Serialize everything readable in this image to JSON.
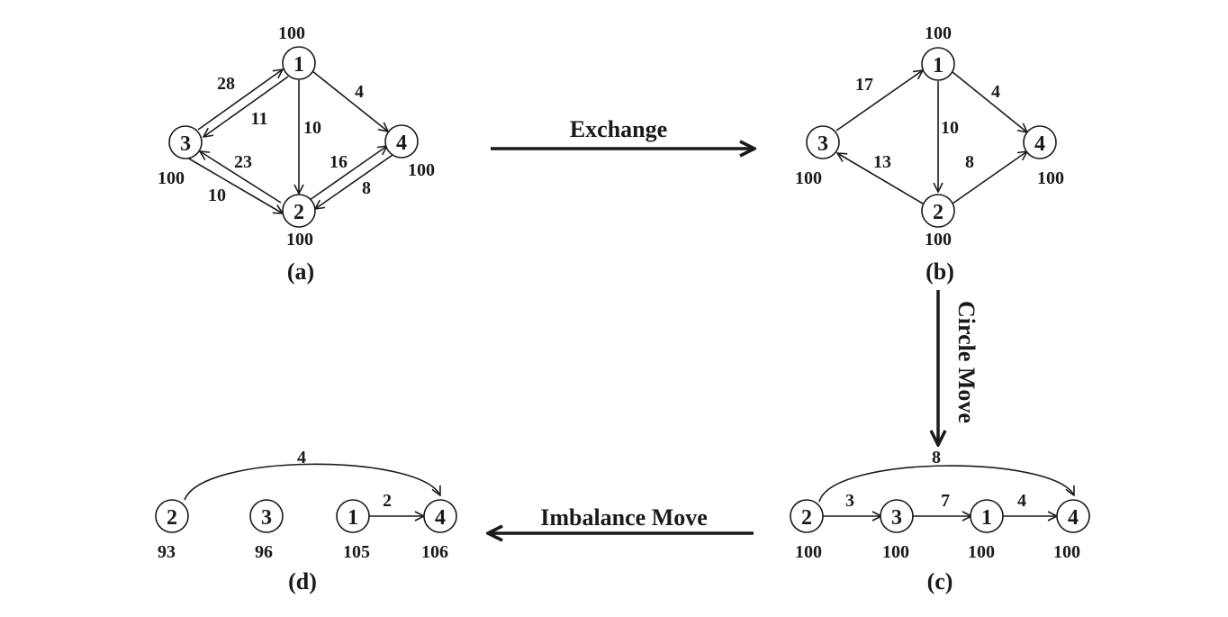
{
  "panels": {
    "a": {
      "caption": "(a)",
      "nodes": {
        "n1": "1",
        "n2": "2",
        "n3": "3",
        "n4": "4"
      },
      "values": {
        "n1": "100",
        "n2": "100",
        "n3": "100",
        "n4": "100"
      },
      "edges": {
        "e31": "28",
        "e13": "11",
        "e12": "10",
        "e14": "4",
        "e23": "23",
        "e32": "10",
        "e24": "16",
        "e42": "8"
      }
    },
    "b": {
      "caption": "(b)",
      "nodes": {
        "n1": "1",
        "n2": "2",
        "n3": "3",
        "n4": "4"
      },
      "values": {
        "n1": "100",
        "n2": "100",
        "n3": "100",
        "n4": "100"
      },
      "edges": {
        "e31": "17",
        "e12": "10",
        "e14": "4",
        "e23": "13",
        "e24": "8"
      }
    },
    "c": {
      "caption": "(c)",
      "nodes": {
        "n2": "2",
        "n3": "3",
        "n1": "1",
        "n4": "4"
      },
      "values": {
        "n2": "100",
        "n3": "100",
        "n1": "100",
        "n4": "100"
      },
      "edges": {
        "e23": "3",
        "e31": "7",
        "e14": "4",
        "e24": "8"
      }
    },
    "d": {
      "caption": "(d)",
      "nodes": {
        "n2": "2",
        "n3": "3",
        "n1": "1",
        "n4": "4"
      },
      "values": {
        "n2": "93",
        "n3": "96",
        "n1": "105",
        "n4": "106"
      },
      "edges": {
        "e14": "2",
        "e24": "4"
      }
    }
  },
  "transitions": {
    "exchange": "Exchange",
    "circle_move": "Circle Move",
    "imbalance_move": "Imbalance Move"
  }
}
